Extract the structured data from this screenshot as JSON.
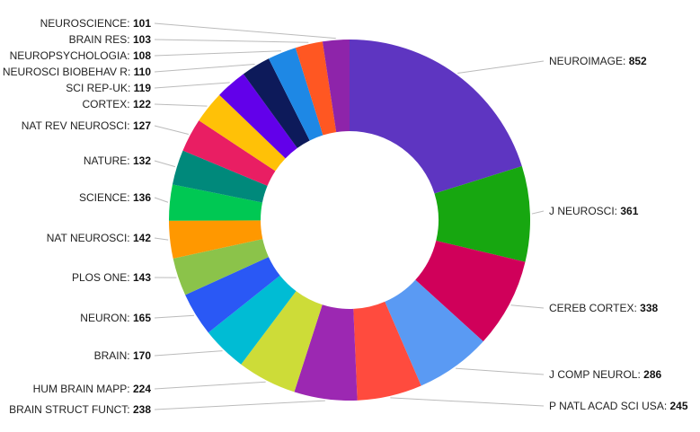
{
  "chart_data": {
    "type": "pie",
    "variant": "donut",
    "title": "",
    "legend": "none",
    "label_format": "NAME: value",
    "slices": [
      {
        "name": "NEUROIMAGE",
        "value": 852,
        "color": "#5E35C1"
      },
      {
        "name": "J NEUROSCI",
        "value": 361,
        "color": "#17A710"
      },
      {
        "name": "CEREB CORTEX",
        "value": 338,
        "color": "#D0005A"
      },
      {
        "name": "J COMP NEUROL",
        "value": 286,
        "color": "#5A9AF3"
      },
      {
        "name": "P NATL ACAD SCI USA",
        "value": 245,
        "color": "#FF4B3E"
      },
      {
        "name": "BRAIN STRUCT FUNCT",
        "value": 238,
        "color": "#9C28B2"
      },
      {
        "name": "HUM BRAIN MAPP",
        "value": 224,
        "color": "#CDDC38"
      },
      {
        "name": "BRAIN",
        "value": 170,
        "color": "#00BCD4"
      },
      {
        "name": "NEURON",
        "value": 165,
        "color": "#2A58F5"
      },
      {
        "name": "PLOS ONE",
        "value": 143,
        "color": "#8BC34A"
      },
      {
        "name": "NAT NEUROSCI",
        "value": 142,
        "color": "#FF9800"
      },
      {
        "name": "SCIENCE",
        "value": 136,
        "color": "#00C853"
      },
      {
        "name": "NATURE",
        "value": 132,
        "color": "#00897B"
      },
      {
        "name": "NAT REV NEUROSCI",
        "value": 127,
        "color": "#E91E63"
      },
      {
        "name": "CORTEX",
        "value": 122,
        "color": "#FFC107"
      },
      {
        "name": "SCI REP-UK",
        "value": 119,
        "color": "#6200EA"
      },
      {
        "name": "NEUROSCI BIOBEHAV R",
        "value": 110,
        "color": "#0D1A5A"
      },
      {
        "name": "NEUROPSYCHOLOGIA",
        "value": 108,
        "color": "#1E88E5"
      },
      {
        "name": "BRAIN RES",
        "value": 103,
        "color": "#FF5722"
      },
      {
        "name": "NEUROSCIENCE",
        "value": 101,
        "color": "#8E24AA"
      }
    ]
  }
}
